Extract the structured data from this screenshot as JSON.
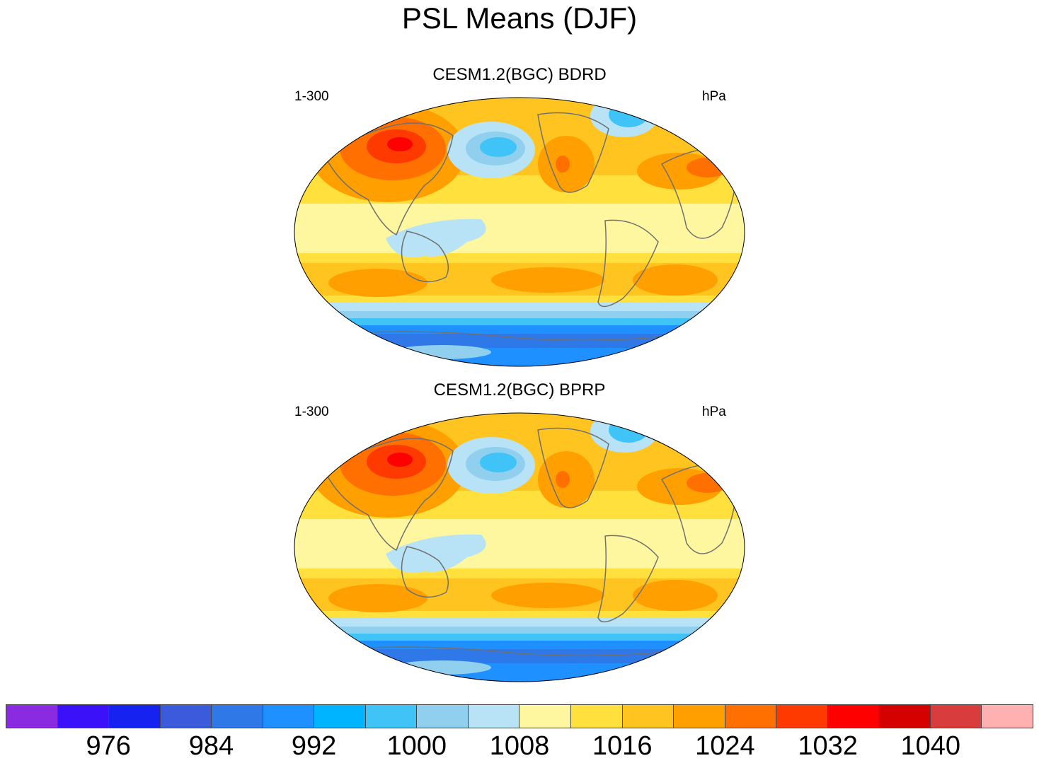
{
  "title": "PSL Means (DJF)",
  "panels": [
    {
      "title": "CESM1.2(BGC) BDRD",
      "left_label": "1-300",
      "right_label": "hPa"
    },
    {
      "title": "CESM1.2(BGC) BPRP",
      "left_label": "1-300",
      "right_label": "hPa"
    }
  ],
  "colorbar": {
    "colors": [
      "#8a2be2",
      "#3a11f8",
      "#1622f0",
      "#3c5adc",
      "#2f78e8",
      "#1e90ff",
      "#00b4ff",
      "#40c4f8",
      "#90d0ee",
      "#b8e2f6",
      "#fff7a0",
      "#ffe03c",
      "#ffc420",
      "#ff9f00",
      "#ff7000",
      "#ff3a00",
      "#ff0000",
      "#d50000",
      "#d83c3c",
      "#ffb0b0"
    ],
    "tick_labels": [
      "976",
      "984",
      "992",
      "1000",
      "1008",
      "1016",
      "1024",
      "1032",
      "1040"
    ]
  },
  "map_colors": {
    "ocean_base": "#fff7a0",
    "band_yellow": "#ffe03c",
    "band_gold": "#ffc420",
    "high_orange": "#ff9f00",
    "high_dark_orange": "#ff7000",
    "high_red_orange": "#ff3a00",
    "high_red": "#ff0000",
    "low_light_blue": "#b8e2f6",
    "low_sky": "#90d0ee",
    "low_blue1": "#40c4f8",
    "low_blue2": "#00b4ff",
    "low_blue3": "#1e90ff",
    "low_blue4": "#2f78e8",
    "coast": "#707070"
  }
}
